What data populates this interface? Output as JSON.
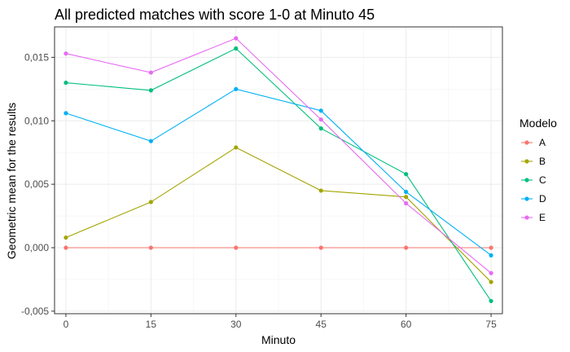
{
  "chart_data": {
    "type": "line",
    "title": "All predicted matches with score 1-0 at Minuto 45",
    "xlabel": "Minuto",
    "ylabel": "Geometric mean for the results",
    "x": [
      0,
      15,
      30,
      45,
      60,
      75
    ],
    "x_tick_labels": [
      "0",
      "15",
      "30",
      "45",
      "60",
      "75"
    ],
    "y_ticks": [
      -0.005,
      0.0,
      0.005,
      0.01,
      0.015
    ],
    "y_tick_labels": [
      "-0,005",
      "0,000",
      "0,005",
      "0,010",
      "0,015"
    ],
    "xlim": [
      -2,
      77
    ],
    "ylim": [
      -0.0052,
      0.0174
    ],
    "grid": true,
    "legend": {
      "title": "Modelo",
      "position": "right"
    },
    "series": [
      {
        "name": "A",
        "color": "#F8766D",
        "values": [
          0.0,
          0.0,
          0.0,
          0.0,
          0.0,
          0.0
        ]
      },
      {
        "name": "B",
        "color": "#A3A500",
        "values": [
          0.0008,
          0.0036,
          0.0079,
          0.0045,
          0.004,
          -0.0027
        ]
      },
      {
        "name": "C",
        "color": "#00BF7D",
        "values": [
          0.013,
          0.0124,
          0.0157,
          0.0094,
          0.0058,
          -0.0042
        ]
      },
      {
        "name": "D",
        "color": "#00B0F6",
        "values": [
          0.0106,
          0.0084,
          0.0125,
          0.0108,
          0.0044,
          -0.0006
        ]
      },
      {
        "name": "E",
        "color": "#E76BF3",
        "values": [
          0.0153,
          0.0138,
          0.0165,
          0.0101,
          0.0035,
          -0.002
        ]
      }
    ]
  }
}
